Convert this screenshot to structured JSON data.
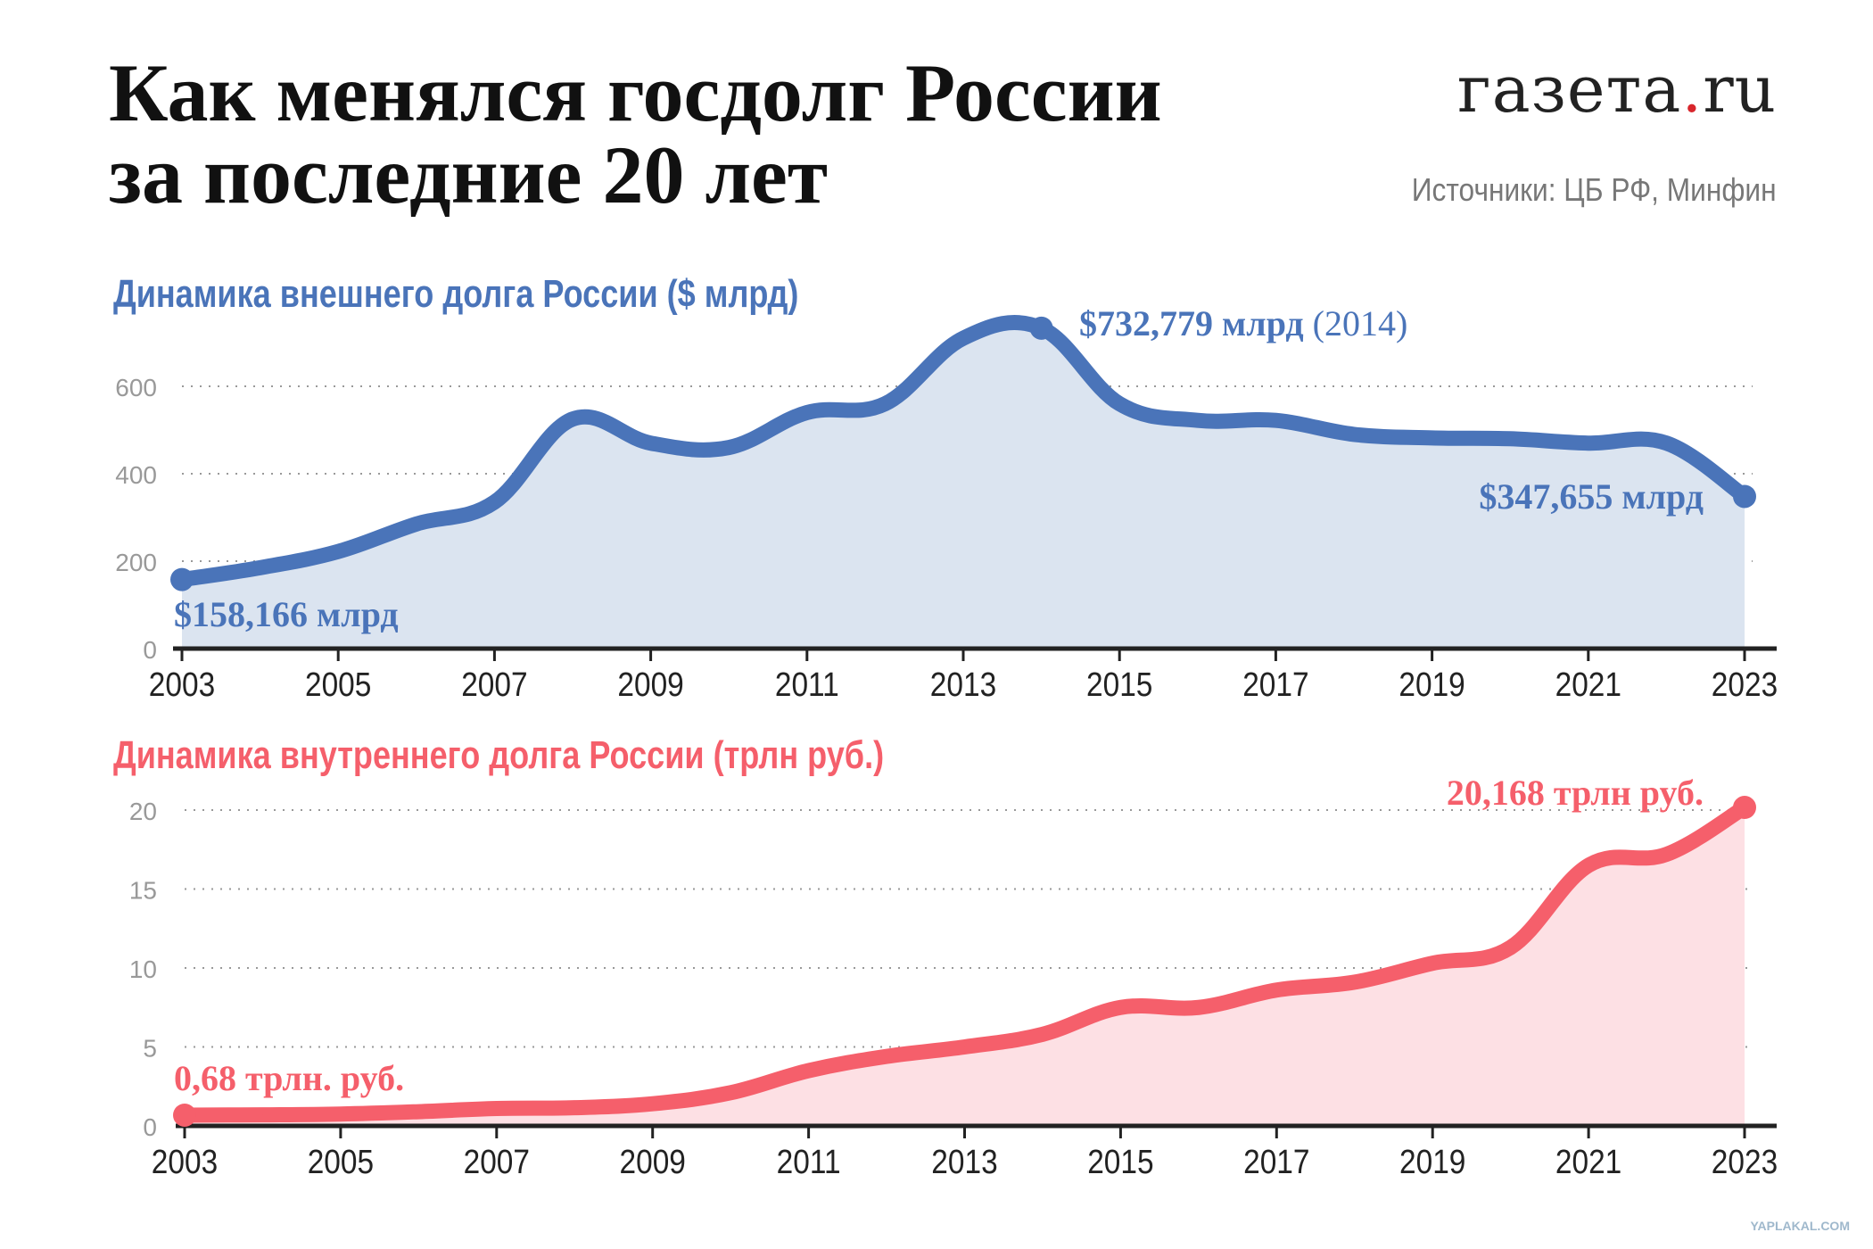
{
  "header": {
    "title_line1": "Как менялся госдолг России",
    "title_line2": "за последние 20 лет",
    "logo": "газета.ru",
    "source": "Источники: ЦБ РФ, Минфин"
  },
  "watermark": "YAPLAKAL.COM",
  "chart_data": [
    {
      "type": "area",
      "title": "Динамика внешнего долга России ($ млрд)",
      "color": "#4a74b9",
      "fill": "#dbe4f0",
      "x": [
        2003,
        2004,
        2005,
        2006,
        2007,
        2008,
        2009,
        2010,
        2011,
        2012,
        2013,
        2014,
        2015,
        2016,
        2017,
        2018,
        2019,
        2020,
        2021,
        2022,
        2023
      ],
      "values": [
        158,
        185,
        222,
        285,
        335,
        525,
        470,
        460,
        540,
        560,
        710,
        733,
        560,
        522,
        522,
        490,
        482,
        480,
        470,
        470,
        348
      ],
      "ylim": [
        0,
        700
      ],
      "yticks": [
        0,
        200,
        400,
        600
      ],
      "xticks": [
        "2003",
        "2005",
        "2007",
        "2009",
        "2011",
        "2013",
        "2015",
        "2017",
        "2019",
        "2021",
        "2023"
      ],
      "grid": true,
      "annotations": {
        "start": "$158,166 млрд",
        "peak": "$732,779 млрд",
        "peak_year": "(2014)",
        "end": "$347,655 млрд"
      }
    },
    {
      "type": "area",
      "title": "Динамика внутреннего долга России (трлн руб.)",
      "color": "#f55f6b",
      "fill": "#fde0e4",
      "x": [
        2003,
        2004,
        2005,
        2006,
        2007,
        2008,
        2009,
        2010,
        2011,
        2012,
        2013,
        2014,
        2015,
        2016,
        2017,
        2018,
        2019,
        2020,
        2021,
        2022,
        2023
      ],
      "values": [
        0.68,
        0.7,
        0.75,
        0.9,
        1.1,
        1.15,
        1.4,
        2.1,
        3.5,
        4.4,
        5.0,
        5.8,
        7.5,
        7.5,
        8.6,
        9.1,
        10.3,
        11.3,
        16.5,
        17.2,
        20.168
      ],
      "ylim": [
        0,
        21
      ],
      "yticks": [
        0,
        5,
        10,
        15,
        20
      ],
      "xticks": [
        "2003",
        "2005",
        "2007",
        "2009",
        "2011",
        "2013",
        "2015",
        "2017",
        "2019",
        "2021",
        "2023"
      ],
      "grid": true,
      "annotations": {
        "start": "0,68 трлн. руб.",
        "end": "20,168 трлн руб."
      }
    }
  ]
}
